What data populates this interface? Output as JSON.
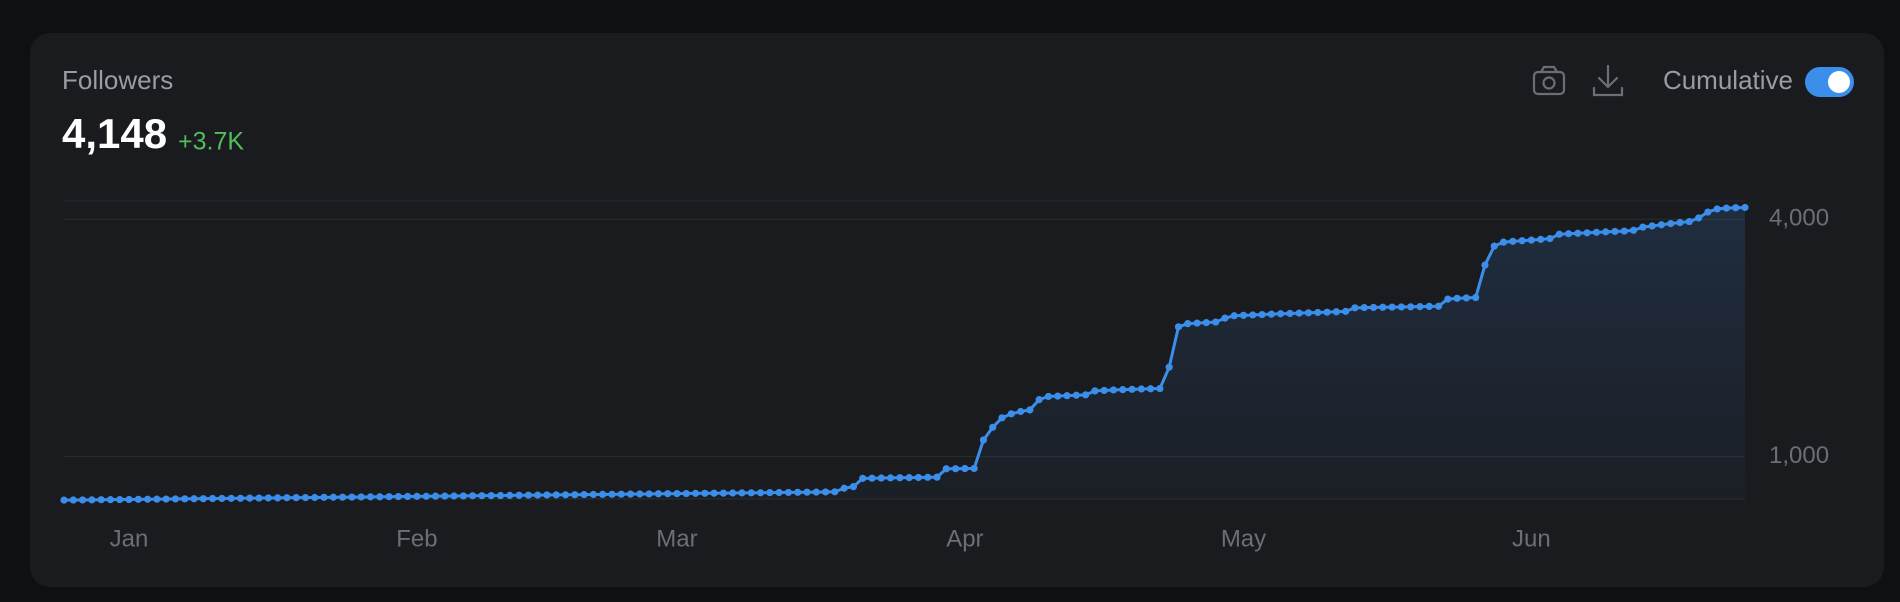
{
  "chart_data": {
    "type": "line",
    "title": "Followers",
    "headline": "4,148",
    "change": "+3.7K",
    "toggle_label": "Cumulative",
    "color": "#3b8eea",
    "grid": true,
    "ylim": [
      464,
      4230
    ],
    "yticks": [
      {
        "value": 1000,
        "label": "1,000"
      },
      {
        "value": 4000,
        "label": "4,000"
      }
    ],
    "categories": [
      null,
      null,
      null,
      null,
      null,
      null,
      null,
      "Jan",
      null,
      null,
      null,
      null,
      null,
      null,
      null,
      null,
      null,
      null,
      null,
      null,
      null,
      null,
      null,
      null,
      null,
      null,
      null,
      null,
      null,
      null,
      null,
      null,
      null,
      null,
      null,
      null,
      null,
      null,
      "Feb",
      null,
      null,
      null,
      null,
      null,
      null,
      null,
      null,
      null,
      null,
      null,
      null,
      null,
      null,
      null,
      null,
      null,
      null,
      null,
      null,
      null,
      null,
      null,
      null,
      null,
      null,
      null,
      "Mar",
      null,
      null,
      null,
      null,
      null,
      null,
      null,
      null,
      null,
      null,
      null,
      null,
      null,
      null,
      null,
      null,
      null,
      null,
      null,
      null,
      null,
      null,
      null,
      null,
      null,
      null,
      null,
      null,
      null,
      null,
      "Apr",
      null,
      null,
      null,
      null,
      null,
      null,
      null,
      null,
      null,
      null,
      null,
      null,
      null,
      null,
      null,
      null,
      null,
      null,
      null,
      null,
      null,
      null,
      null,
      null,
      null,
      null,
      null,
      null,
      null,
      "May",
      null,
      null,
      null,
      null,
      null,
      null,
      null,
      null,
      null,
      null,
      null,
      null,
      null,
      null,
      null,
      null,
      null,
      null,
      null,
      null,
      null,
      null,
      null,
      null,
      null,
      null,
      null,
      null,
      null,
      null,
      "Jun",
      null,
      null,
      null,
      null,
      null,
      null,
      null,
      null,
      null,
      null,
      null,
      null,
      null,
      null,
      null,
      null,
      null,
      null,
      null,
      null,
      null,
      null,
      null
    ],
    "values": [
      450,
      451,
      452,
      453,
      455,
      456,
      457,
      458,
      460,
      461,
      462,
      463,
      465,
      466,
      467,
      468,
      470,
      471,
      472,
      473,
      475,
      476,
      477,
      478,
      480,
      481,
      482,
      483,
      485,
      486,
      487,
      488,
      490,
      491,
      492,
      493,
      495,
      496,
      497,
      498,
      500,
      501,
      502,
      503,
      505,
      506,
      507,
      508,
      510,
      511,
      512,
      513,
      515,
      516,
      517,
      518,
      520,
      521,
      522,
      523,
      525,
      526,
      527,
      528,
      530,
      531,
      532,
      533,
      535,
      536,
      537,
      538,
      540,
      541,
      542,
      543,
      545,
      546,
      547,
      548,
      550,
      551,
      553,
      555,
      600,
      620,
      725,
      727,
      729,
      731,
      733,
      734,
      736,
      738,
      740,
      846,
      847,
      849,
      850,
      1210,
      1370,
      1490,
      1540,
      1570,
      1590,
      1720,
      1760,
      1765,
      1770,
      1775,
      1780,
      1830,
      1836,
      1842,
      1846,
      1850,
      1854,
      1857,
      1860,
      2130,
      2640,
      2680,
      2687,
      2694,
      2700,
      2750,
      2780,
      2785,
      2790,
      2795,
      2800,
      2805,
      2809,
      2813,
      2817,
      2821,
      2825,
      2830,
      2835,
      2880,
      2883,
      2885,
      2887,
      2889,
      2891,
      2893,
      2895,
      2898,
      2900,
      2990,
      3000,
      3005,
      3010,
      3420,
      3660,
      3710,
      3720,
      3728,
      3736,
      3745,
      3755,
      3810,
      3816,
      3822,
      3828,
      3834,
      3840,
      3845,
      3850,
      3860,
      3900,
      3915,
      3930,
      3945,
      3958,
      3970,
      4015,
      4090,
      4130,
      4140,
      4145,
      4148
    ]
  }
}
